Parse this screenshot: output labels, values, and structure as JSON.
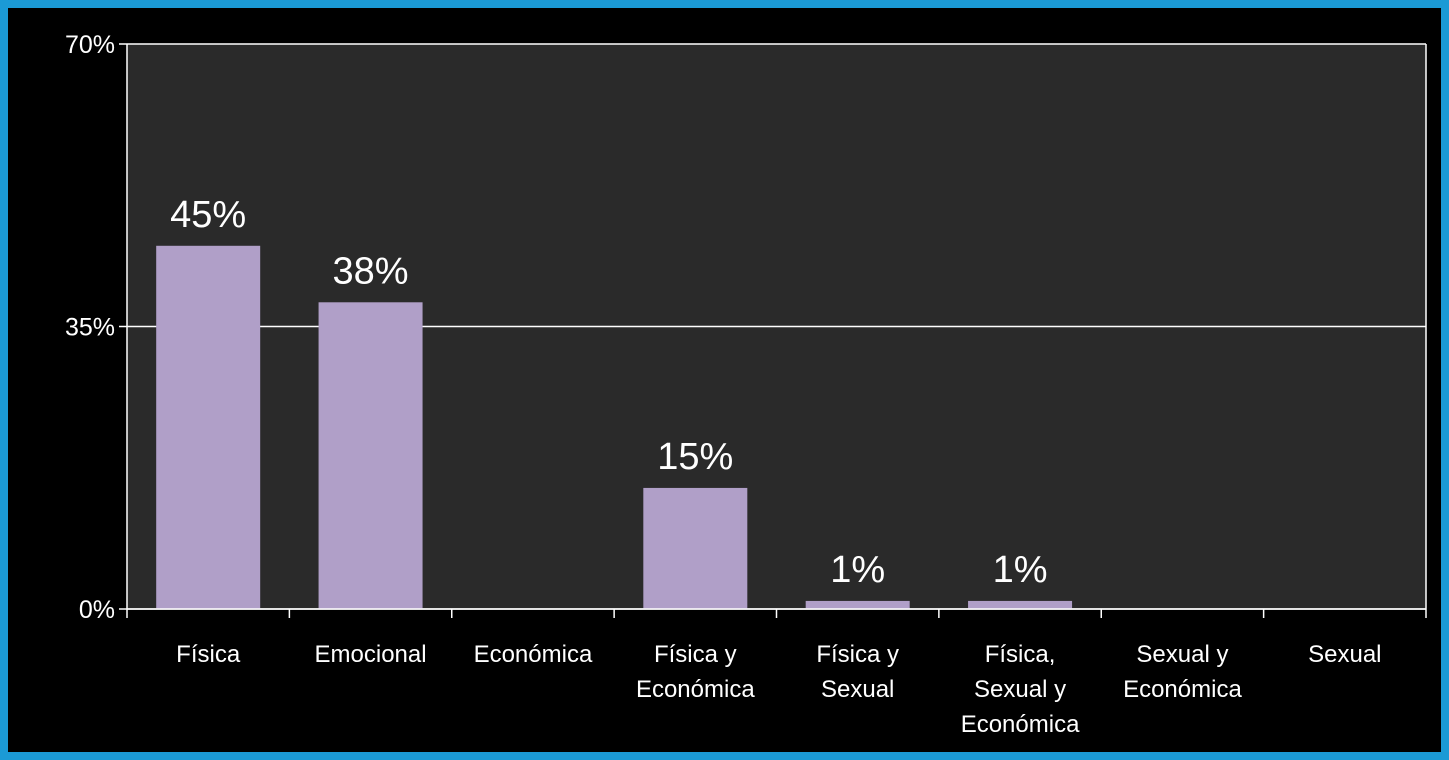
{
  "chart_data": {
    "type": "bar",
    "categories": [
      "Física",
      "Emocional",
      "Económica",
      "Física y\nEconómica",
      "Física y\nSexual",
      "Física,\nSexual y\nEconómica",
      "Sexual y\nEconómica",
      "Sexual"
    ],
    "values": [
      45,
      38,
      0,
      15,
      1,
      1,
      0,
      0
    ],
    "data_labels": [
      "45%",
      "38%",
      "",
      "15%",
      "1%",
      "1%",
      "",
      ""
    ],
    "ylim": [
      0,
      70
    ],
    "yticks": [
      0,
      35,
      70
    ],
    "ytick_labels": [
      "0%",
      "35%",
      "70%"
    ],
    "grid": true,
    "title": "",
    "xlabel": "",
    "ylabel": ""
  },
  "colors": {
    "background": "#1b9ad6",
    "frame": "#000000",
    "plot_area": "#2a2a2a",
    "bar": "#b09fc8",
    "axis": "#ffffff",
    "text": "#ffffff"
  }
}
